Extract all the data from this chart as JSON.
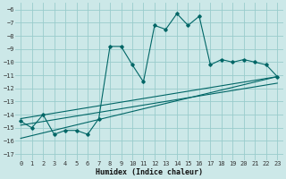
{
  "xlabel": "Humidex (Indice chaleur)",
  "bg_color": "#cce8e8",
  "grid_color": "#99cccc",
  "line_color": "#006666",
  "xlim": [
    -0.5,
    23.5
  ],
  "ylim": [
    -17.5,
    -5.5
  ],
  "xticks": [
    0,
    1,
    2,
    3,
    4,
    5,
    6,
    7,
    8,
    9,
    10,
    11,
    12,
    13,
    14,
    15,
    16,
    17,
    18,
    19,
    20,
    21,
    22,
    23
  ],
  "yticks": [
    -6,
    -7,
    -8,
    -9,
    -10,
    -11,
    -12,
    -13,
    -14,
    -15,
    -16,
    -17
  ],
  "main_series_x": [
    0,
    1,
    2,
    3,
    4,
    5,
    6,
    7,
    8,
    9,
    10,
    11,
    12,
    13,
    14,
    15,
    16,
    17,
    18,
    19,
    20,
    21,
    22,
    23
  ],
  "main_series_y": [
    -14.5,
    -15.0,
    -14.0,
    -15.5,
    -15.2,
    -15.2,
    -15.5,
    -14.3,
    -8.8,
    -8.8,
    -10.2,
    -11.5,
    -7.2,
    -7.5,
    -6.3,
    -7.2,
    -6.5,
    -10.2,
    -9.8,
    -10.0,
    -9.8,
    -10.0,
    -10.2,
    -11.1
  ],
  "line1_x": [
    0,
    23
  ],
  "line1_y": [
    -14.3,
    -11.1
  ],
  "line2_x": [
    0,
    23
  ],
  "line2_y": [
    -14.8,
    -11.6
  ],
  "line3_x": [
    0,
    23
  ],
  "line3_y": [
    -15.8,
    -11.1
  ]
}
